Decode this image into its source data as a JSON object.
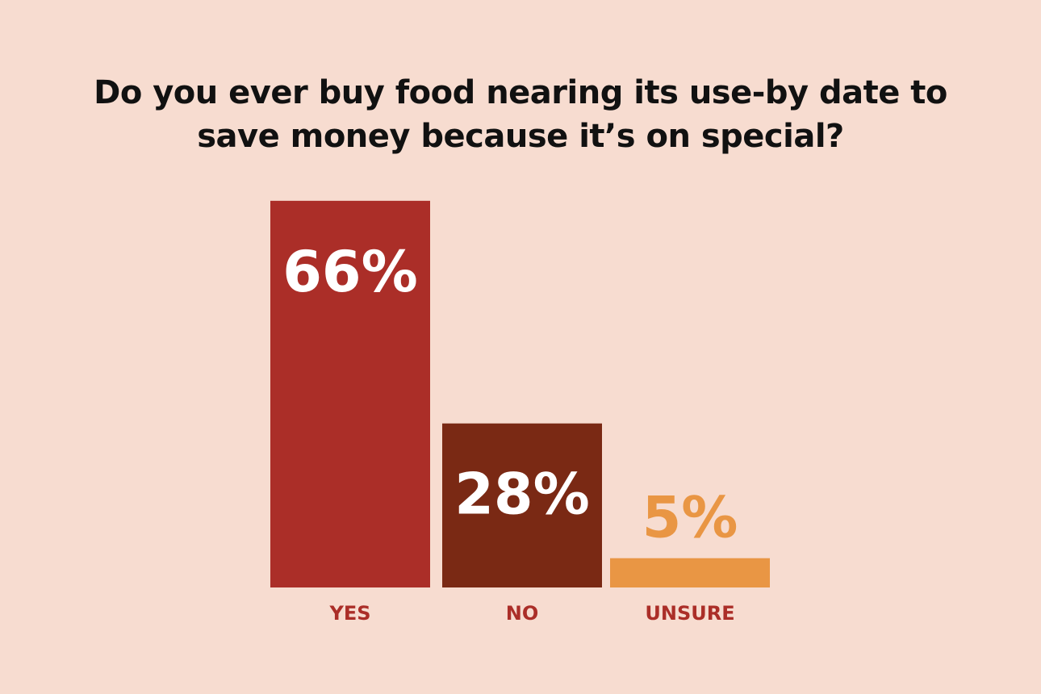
{
  "chart_data": {
    "type": "bar",
    "title": "Do you ever buy food nearing its use-by date to save money because it’s on special?",
    "categories": [
      "YES",
      "NO",
      "UNSURE"
    ],
    "values": [
      66,
      28,
      5
    ],
    "value_labels": [
      "66%",
      "28%",
      "5%"
    ],
    "colors": [
      "#ab2e28",
      "#7a2914",
      "#e99644"
    ]
  }
}
